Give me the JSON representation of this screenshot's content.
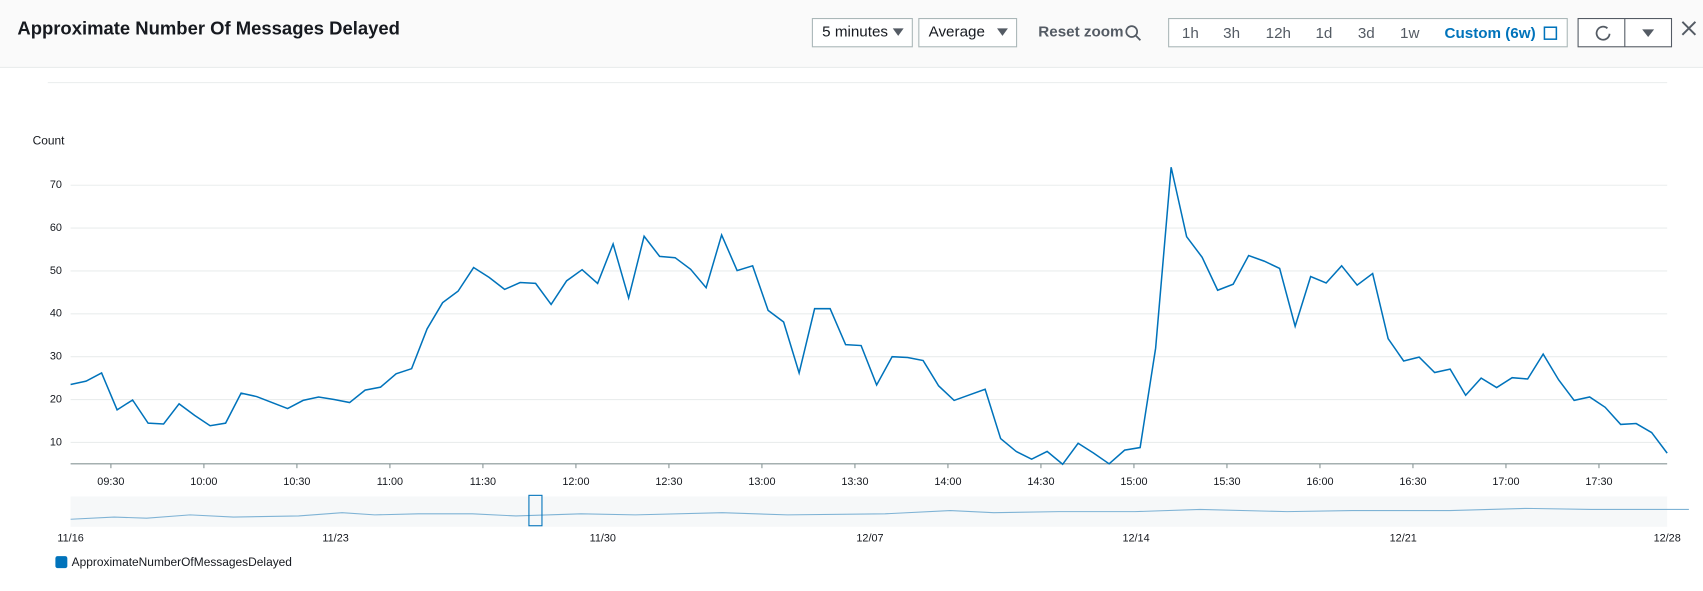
{
  "header": {
    "title": "Approximate Number Of Messages Delayed",
    "period": "5 minutes",
    "statistic": "Average",
    "reset_zoom": "Reset zoom",
    "ranges": [
      "1h",
      "3h",
      "12h",
      "1d",
      "3d",
      "1w"
    ],
    "custom_range": "Custom (6w)"
  },
  "overview": {
    "labels": [
      "11/16",
      "11/23",
      "11/30",
      "12/07",
      "12/14",
      "12/21",
      "12/28"
    ]
  },
  "chart_data": {
    "type": "line",
    "y_label": "Count",
    "grid": true,
    "x": [
      557,
      562,
      567,
      572,
      577,
      582,
      587,
      592,
      597,
      602,
      607,
      612,
      617,
      622,
      627,
      632,
      637,
      642,
      647,
      652,
      657,
      662,
      667,
      672,
      677,
      682,
      687,
      692,
      697,
      702,
      707,
      712,
      717,
      722,
      727,
      732,
      737,
      742,
      747,
      752,
      757,
      762,
      767,
      772,
      777,
      782,
      787,
      792,
      797,
      802,
      807,
      812,
      817,
      822,
      827,
      832,
      837,
      842,
      847,
      852,
      857,
      862,
      867,
      872,
      877,
      882,
      887,
      892,
      897,
      902,
      907,
      912,
      917,
      922,
      927,
      932,
      937,
      942,
      947,
      952,
      957,
      962,
      967,
      972,
      977,
      982,
      987,
      992,
      997,
      1002,
      1007,
      1012,
      1017,
      1022,
      1027,
      1032,
      1037,
      1042,
      1047,
      1052,
      1057,
      1062,
      1067,
      1072
    ],
    "series": [
      {
        "name": "ApproximateNumberOfMessagesDelayed",
        "color": "#0073bb",
        "values": [
          23.5,
          24.3,
          26.2,
          17.6,
          19.9,
          14.5,
          14.3,
          19,
          16.3,
          13.9,
          14.5,
          21.5,
          20.7,
          19.3,
          17.9,
          19.8,
          20.6,
          20,
          19.3,
          22.2,
          22.9,
          26,
          27.2,
          36.5,
          42.6,
          45.3,
          50.8,
          48.5,
          45.7,
          47.3,
          47.1,
          42.2,
          47.7,
          50.3,
          47.1,
          56.3,
          43.7,
          58.1,
          53.4,
          53.1,
          50.4,
          46.1,
          58.4,
          50.1,
          51.2,
          40.8,
          38.1,
          26.2,
          41.2,
          41.2,
          32.8,
          32.6,
          23.4,
          30,
          29.8,
          29.1,
          23.2,
          19.8,
          21.1,
          22.4,
          10.9,
          7.9,
          6.1,
          7.9,
          4.9,
          9.8,
          7.5,
          5,
          8.2,
          8.8,
          32,
          74.2,
          58,
          53.2,
          45.5,
          46.9,
          53.6,
          52.3,
          50.6,
          37.1,
          48.7,
          47.2,
          51.2,
          46.7,
          49.4,
          34.2,
          29,
          29.9,
          26.3,
          27.1,
          21,
          25,
          22.8,
          25.1,
          24.8,
          30.6,
          24.6,
          19.8,
          20.6,
          18.2,
          14.2,
          14.4,
          12.3,
          7.5
        ]
      }
    ],
    "xlim": [
      557,
      1072
    ],
    "xticks": [
      {
        "value": 570,
        "label": "09:30"
      },
      {
        "value": 600,
        "label": "10:00"
      },
      {
        "value": 630,
        "label": "10:30"
      },
      {
        "value": 660,
        "label": "11:00"
      },
      {
        "value": 690,
        "label": "11:30"
      },
      {
        "value": 720,
        "label": "12:00"
      },
      {
        "value": 750,
        "label": "12:30"
      },
      {
        "value": 780,
        "label": "13:00"
      },
      {
        "value": 810,
        "label": "13:30"
      },
      {
        "value": 840,
        "label": "14:00"
      },
      {
        "value": 870,
        "label": "14:30"
      },
      {
        "value": 900,
        "label": "15:00"
      },
      {
        "value": 930,
        "label": "15:30"
      },
      {
        "value": 960,
        "label": "16:00"
      },
      {
        "value": 990,
        "label": "16:30"
      },
      {
        "value": 1020,
        "label": "17:00"
      },
      {
        "value": 1050,
        "label": "17:30"
      }
    ],
    "ylim": [
      5,
      75
    ],
    "yticks": [
      10,
      20,
      30,
      40,
      50,
      60,
      70
    ]
  }
}
